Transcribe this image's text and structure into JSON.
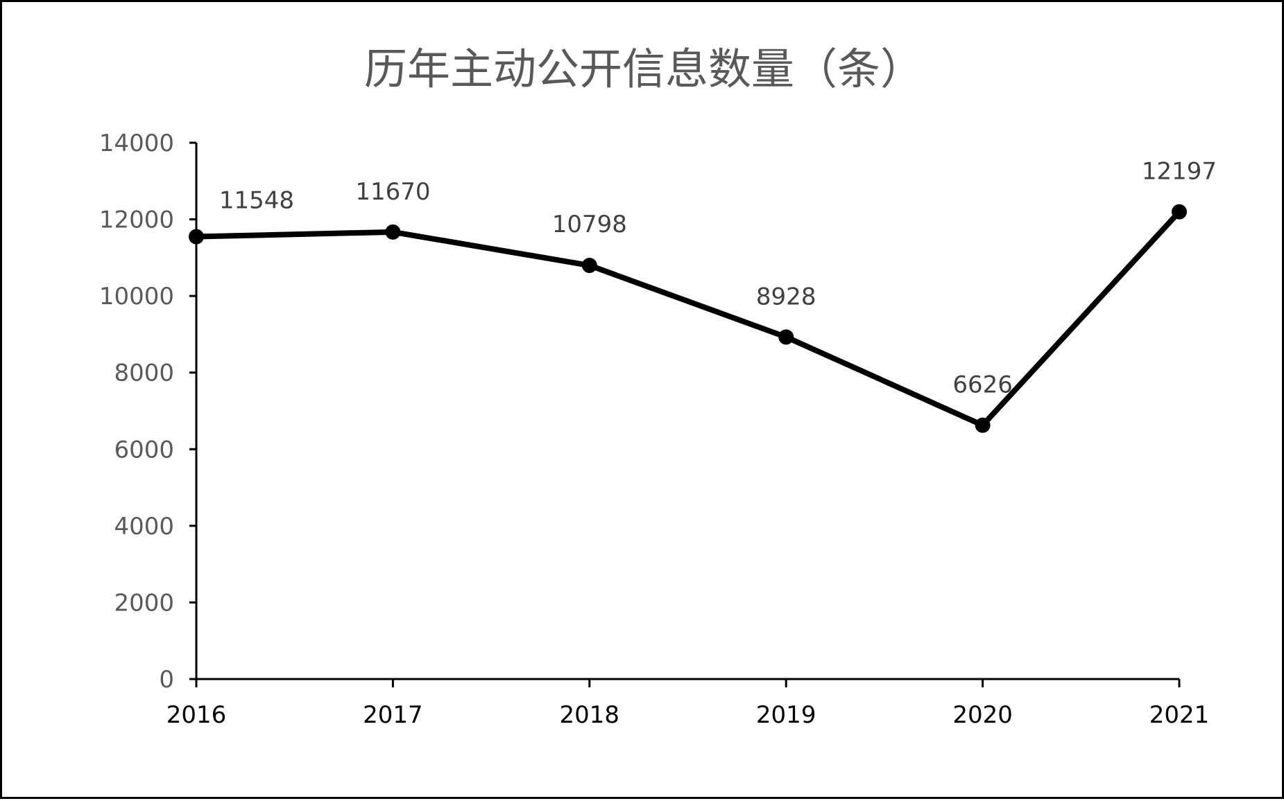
{
  "chart_data": {
    "type": "line",
    "title": "历年主动公开信息数量（条）",
    "xlabel": "",
    "ylabel": "",
    "categories": [
      "2016",
      "2017",
      "2018",
      "2019",
      "2020",
      "2021"
    ],
    "series": [
      {
        "values": [
          11548,
          11670,
          10798,
          8928,
          6626,
          12197
        ]
      }
    ],
    "data_labels": [
      "11548",
      "11670",
      "10798",
      "8928",
      "6626",
      "12197"
    ],
    "ylim": [
      0,
      14000
    ],
    "y_ticks": [
      "0",
      "2000",
      "4000",
      "6000",
      "8000",
      "10000",
      "12000",
      "14000"
    ],
    "grid": false,
    "legend": "none",
    "colors": {
      "line": "#000000",
      "marker": "#000000",
      "title": "#595959",
      "y_tick": "#595959",
      "x_tick": "#000000",
      "data_label": "#404040",
      "axis": "#000000",
      "frame": "#000000"
    }
  }
}
